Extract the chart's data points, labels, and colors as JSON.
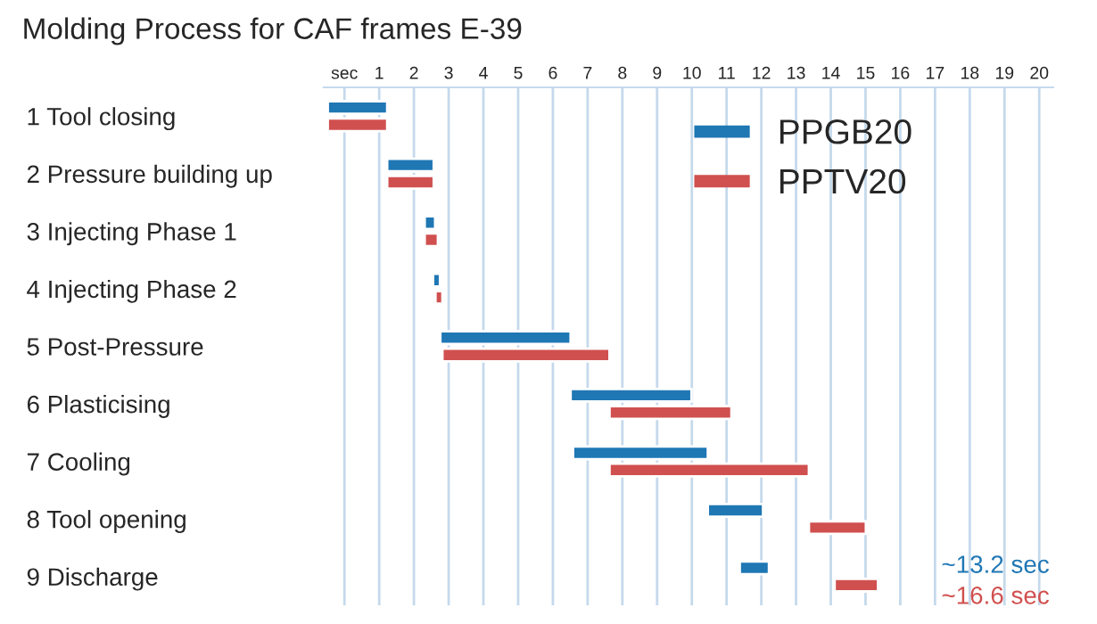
{
  "chart_data": {
    "type": "bar",
    "orientation": "horizontal",
    "title": "Molding Process for CAF frames E-39",
    "categories": [
      "1 Tool closing",
      "2 Pressure building up",
      "3 Injecting Phase 1",
      "4 Injecting Phase 2",
      "5 Post-Pressure",
      "6 Plasticising",
      "7 Cooling",
      "8 Tool opening",
      "9 Discharge"
    ],
    "series": [
      {
        "name": "PPGB20",
        "color": "#1f77b4",
        "base": [
          -0.48,
          1.23,
          2.31,
          2.55,
          2.76,
          6.51,
          6.58,
          10.46,
          11.38
        ],
        "values": [
          1.71,
          1.34,
          0.3,
          0.2,
          3.75,
          3.48,
          3.88,
          1.59,
          0.84
        ]
      },
      {
        "name": "PPTV20",
        "color": "#d0504f",
        "base": [
          -0.48,
          1.23,
          2.31,
          2.62,
          2.82,
          7.63,
          7.63,
          13.37,
          14.11
        ],
        "values": [
          1.71,
          1.34,
          0.38,
          0.2,
          4.81,
          3.51,
          5.74,
          1.64,
          1.25
        ]
      }
    ],
    "xlim": [
      -0.6,
      20.4
    ],
    "xticks": [
      {
        "value": 0,
        "label": "sec"
      },
      1,
      2,
      3,
      4,
      5,
      6,
      7,
      8,
      9,
      10,
      11,
      12,
      13,
      14,
      15,
      16,
      17,
      18,
      19,
      20
    ],
    "grid": "x",
    "legend": "top right",
    "annotations": [
      "~13.2 sec",
      "~16.6 sec"
    ]
  }
}
